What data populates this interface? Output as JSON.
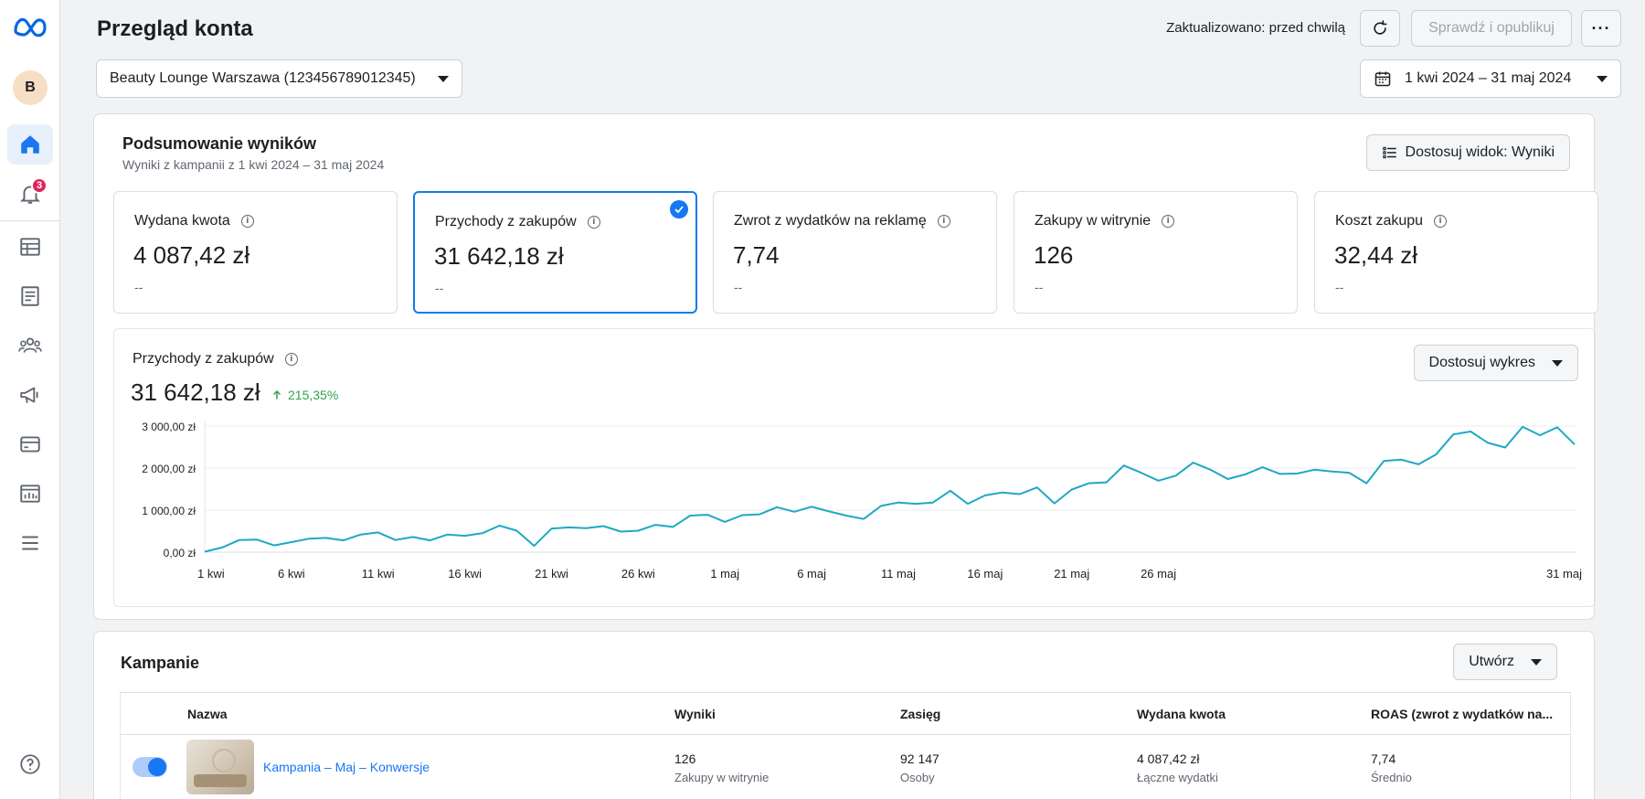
{
  "header": {
    "title": "Przegląd konta",
    "updated": "Zaktualizowano: przed chwilą",
    "publish_label": "Sprawdź i opublikuj",
    "more_label": "···"
  },
  "sidebar": {
    "avatar_initial": "B",
    "notifications_badge": "3",
    "items": [
      "home-icon",
      "bell-icon",
      "table-icon",
      "news-icon",
      "people-icon",
      "megaphone-icon",
      "billing-icon",
      "report-icon",
      "menu-icon",
      "help-icon"
    ]
  },
  "account": {
    "label": "Beauty Lounge Warszawa (123456789012345)"
  },
  "date_range": {
    "label": "1 kwi 2024 – 31 maj 2024"
  },
  "summary": {
    "title": "Podsumowanie wyników",
    "subtitle": "Wyniki z kampanii z 1 kwi 2024 – 31 maj 2024",
    "customize_label": "Dostosuj widok: Wyniki",
    "metrics": [
      {
        "label": "Wydana kwota",
        "value": "4 087,42 zł",
        "delta": "--",
        "selected": false
      },
      {
        "label": "Przychody z zakupów",
        "value": "31 642,18 zł",
        "delta": "--",
        "selected": true
      },
      {
        "label": "Zwrot z wydatków na reklamę",
        "value": "7,74",
        "delta": "--",
        "selected": false
      },
      {
        "label": "Zakupy w witrynie",
        "value": "126",
        "delta": "--",
        "selected": false
      },
      {
        "label": "Koszt zakupu",
        "value": "32,44 zł",
        "delta": "--",
        "selected": false
      }
    ]
  },
  "chart": {
    "title": "Przychody z zakupów",
    "value": "31 642,18 zł",
    "delta": "215,35%",
    "customize_label": "Dostosuj wykres"
  },
  "chart_data": {
    "type": "line",
    "ylim": [
      0,
      3000
    ],
    "y_ticks": [
      "0,00 zł",
      "1 000,00 zł",
      "2 000,00 zł",
      "3 000,00 zł"
    ],
    "x_ticks": [
      "1 kwi",
      "6 kwi",
      "11 kwi",
      "16 kwi",
      "21 kwi",
      "26 kwi",
      "1 maj",
      "6 maj",
      "11 maj",
      "16 maj",
      "21 maj",
      "26 maj",
      "31 maj"
    ],
    "grid": true,
    "color": "#1fa8c4",
    "values": [
      10,
      110,
      290,
      300,
      160,
      240,
      320,
      340,
      280,
      420,
      470,
      290,
      360,
      280,
      420,
      390,
      450,
      630,
      510,
      150,
      560,
      590,
      570,
      620,
      490,
      510,
      650,
      600,
      870,
      890,
      720,
      880,
      900,
      1070,
      960,
      1080,
      970,
      870,
      790,
      1100,
      1180,
      1150,
      1180,
      1460,
      1150,
      1350,
      1420,
      1380,
      1540,
      1160,
      1490,
      1640,
      1660,
      2060,
      1890,
      1700,
      1820,
      2130,
      1960,
      1740,
      1850,
      2020,
      1860,
      1870,
      1960,
      1920,
      1890,
      1640,
      2170,
      2200,
      2090,
      2320,
      2800,
      2870,
      2600,
      2490,
      2980,
      2780,
      2970,
      2560
    ]
  },
  "campaigns": {
    "title": "Kampanie",
    "create_label": "Utwórz",
    "columns": [
      "Nazwa",
      "Wyniki",
      "Zasięg",
      "Wydana kwota",
      "ROAS (zwrot z wydatków na..."
    ],
    "rows": [
      {
        "name": "Kampania – Maj – Konwersje",
        "results": "126",
        "results_sub": "Zakupy w witrynie",
        "reach": "92 147",
        "reach_sub": "Osoby",
        "spend": "4 087,42 zł",
        "spend_sub": "Łączne wydatki",
        "roas": "7,74",
        "roas_sub": "Średnio"
      }
    ]
  }
}
